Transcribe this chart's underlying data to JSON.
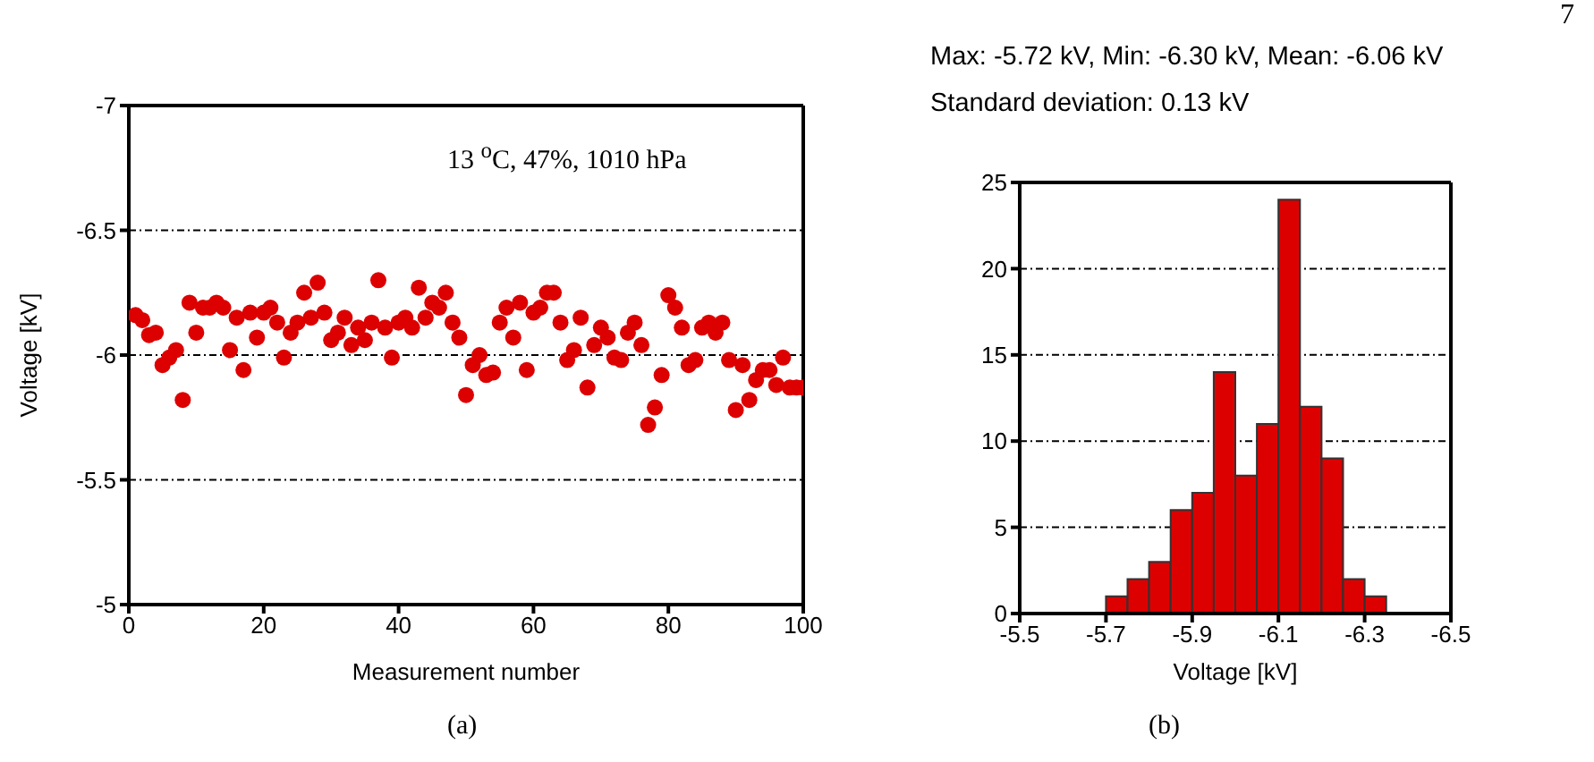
{
  "chart_data": [
    {
      "type": "scatter",
      "xlabel": "Measurement number",
      "ylabel": "Voltage [kV]",
      "annotations": [
        "13 $^{o}$C, 47%, 1010 hPa",
        "(a)"
      ],
      "x": [
        1,
        2,
        3,
        4,
        5,
        6,
        7,
        8,
        9,
        10,
        11,
        12,
        13,
        14,
        15,
        16,
        17,
        18,
        19,
        20,
        21,
        22,
        23,
        24,
        25,
        26,
        27,
        28,
        29,
        30,
        31,
        32,
        33,
        34,
        35,
        36,
        37,
        38,
        39,
        40,
        41,
        42,
        43,
        44,
        45,
        46,
        47,
        48,
        49,
        50,
        51,
        52,
        53,
        54,
        55,
        56,
        57,
        58,
        59,
        60,
        61,
        62,
        63,
        64,
        65,
        66,
        67,
        68,
        69,
        70,
        71,
        72,
        73,
        74,
        75,
        76,
        77,
        78,
        79,
        80,
        81,
        82,
        83,
        84,
        85,
        86,
        87,
        88,
        89,
        90,
        91,
        92,
        93,
        94,
        95,
        96,
        97,
        98,
        99,
        100
      ],
      "series": [
        {
          "color": "#dd0000",
          "values": [
            -6.16,
            -6.14,
            -6.08,
            -6.09,
            -5.96,
            -5.99,
            -6.02,
            -5.82,
            -6.21,
            -6.09,
            -6.19,
            -6.19,
            -6.21,
            -6.19,
            -6.02,
            -6.15,
            -5.94,
            -6.17,
            -6.07,
            -6.17,
            -6.19,
            -6.13,
            -5.99,
            -6.09,
            -6.13,
            -6.25,
            -6.15,
            -6.29,
            -6.17,
            -6.06,
            -6.09,
            -6.15,
            -6.04,
            -6.11,
            -6.06,
            -6.13,
            -6.3,
            -6.11,
            -5.99,
            -6.13,
            -6.15,
            -6.11,
            -6.27,
            -6.15,
            -6.21,
            -6.19,
            -6.25,
            -6.13,
            -6.07,
            -5.84,
            -5.96,
            -6.0,
            -5.92,
            -5.93,
            -6.13,
            -6.19,
            -6.07,
            -6.21,
            -5.94,
            -6.17,
            -6.19,
            -6.25,
            -6.25,
            -6.13,
            -5.98,
            -6.02,
            -6.15,
            -5.87,
            -6.04,
            -6.11,
            -6.07,
            -5.99,
            -5.98,
            -6.09,
            -6.13,
            -6.04,
            -5.72,
            -5.79,
            -5.92,
            -6.24,
            -6.19,
            -6.11,
            -5.96,
            -5.98,
            -6.11,
            -6.13,
            -6.09,
            -6.13,
            -5.98,
            -5.78,
            -5.96,
            -5.82,
            -5.9,
            -5.94,
            -5.94,
            -5.88,
            -5.99,
            -5.87,
            -5.87,
            -5.87
          ]
        }
      ],
      "marker": "circle",
      "xlim": [
        0,
        100
      ],
      "xticks": [
        0,
        20,
        40,
        60,
        80,
        100
      ],
      "ylim": [
        -5,
        -7
      ],
      "yticks": [
        -7,
        -6.5,
        -6,
        -5.5,
        -5
      ],
      "grid": "y",
      "legend": false
    },
    {
      "type": "histogram",
      "title": "Max: -5.72 kV, Min: -6.30 kV, Mean: -6.06 kV",
      "subtitle": "Standard deviation: 0.13 kV",
      "xlabel": "Voltage [kV]",
      "annotations": [
        "(b)",
        "7"
      ],
      "bins": [
        -5.7,
        -5.75,
        -5.8,
        -5.85,
        -5.9,
        -5.95,
        -6.0,
        -6.05,
        -6.1,
        -6.15,
        -6.2,
        -6.25,
        -6.3,
        -6.35
      ],
      "values": [
        1,
        2,
        3,
        6,
        7,
        14,
        8,
        11,
        24,
        12,
        9,
        2,
        1
      ],
      "color": "#dd0000",
      "xlim": [
        -5.5,
        -6.5
      ],
      "xticks": [
        -5.5,
        -5.7,
        -5.9,
        -6.1,
        -6.3,
        -6.5
      ],
      "ylim": [
        0,
        25
      ],
      "yticks": [
        0,
        5,
        10,
        15,
        20,
        25
      ],
      "grid": "y",
      "legend": false
    }
  ]
}
